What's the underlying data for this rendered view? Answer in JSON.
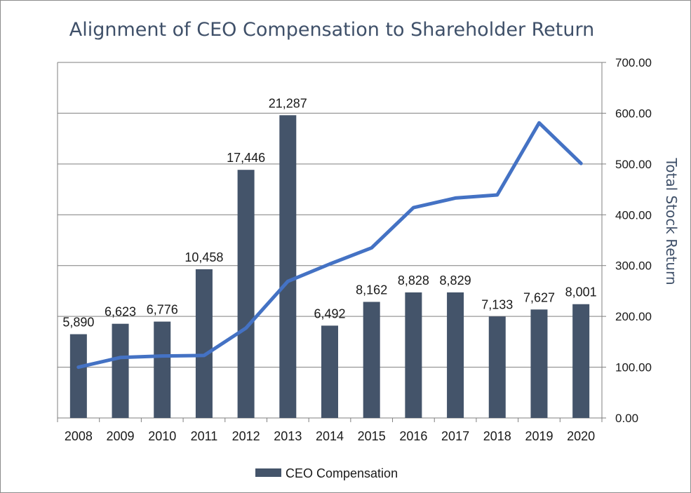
{
  "chart_data": {
    "type": "bar+line",
    "title": "Alignment of CEO Compensation to Shareholder Return",
    "categories": [
      "2008",
      "2009",
      "2010",
      "2011",
      "2012",
      "2013",
      "2014",
      "2015",
      "2016",
      "2017",
      "2018",
      "2019",
      "2020"
    ],
    "series": [
      {
        "name": "CEO Compensation",
        "kind": "bar",
        "axis": "left",
        "values": [
          5890,
          6623,
          6776,
          10458,
          17446,
          21287,
          6492,
          8162,
          8828,
          8829,
          7133,
          7627,
          8001
        ],
        "labels": [
          "5,890",
          "6,623",
          "6,776",
          "10,458",
          "17,446",
          "21,287",
          "6,492",
          "8,162",
          "8,828",
          "8,829",
          "7,133",
          "7,627",
          "8,001"
        ],
        "color": "#44546a"
      },
      {
        "name": "Total Stock Return",
        "kind": "line",
        "axis": "right",
        "values": [
          100,
          119,
          122,
          123,
          177,
          269,
          303,
          335,
          414,
          433,
          439,
          581,
          501
        ],
        "color": "#4472c4"
      }
    ],
    "left_axis": {
      "range": [
        0,
        25000
      ],
      "visible": false
    },
    "right_axis": {
      "title": "Total Stock Return",
      "range": [
        0,
        700
      ],
      "ticks": [
        "0.00",
        "100.00",
        "200.00",
        "300.00",
        "400.00",
        "500.00",
        "600.00",
        "700.00"
      ]
    },
    "gridlines": true,
    "legend": {
      "position": "bottom",
      "entries": [
        "CEO Compensation"
      ]
    }
  },
  "colors": {
    "title": "#3f5069",
    "grid": "#7f7f7f",
    "bar": "#44546a",
    "line": "#4472c4"
  }
}
